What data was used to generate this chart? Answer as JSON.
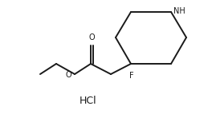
{
  "bg_color": "#ffffff",
  "line_color": "#1a1a1a",
  "line_width": 1.4,
  "font_size_label": 7.0,
  "font_size_hcl": 9.0,
  "hcl_text": "HCl",
  "nh_label": "NH",
  "o_label": "O",
  "f_label": "F",
  "figsize": [
    2.64,
    1.48
  ],
  "dpi": 100,
  "xlim": [
    0,
    264
  ],
  "ylim": [
    0,
    148
  ]
}
